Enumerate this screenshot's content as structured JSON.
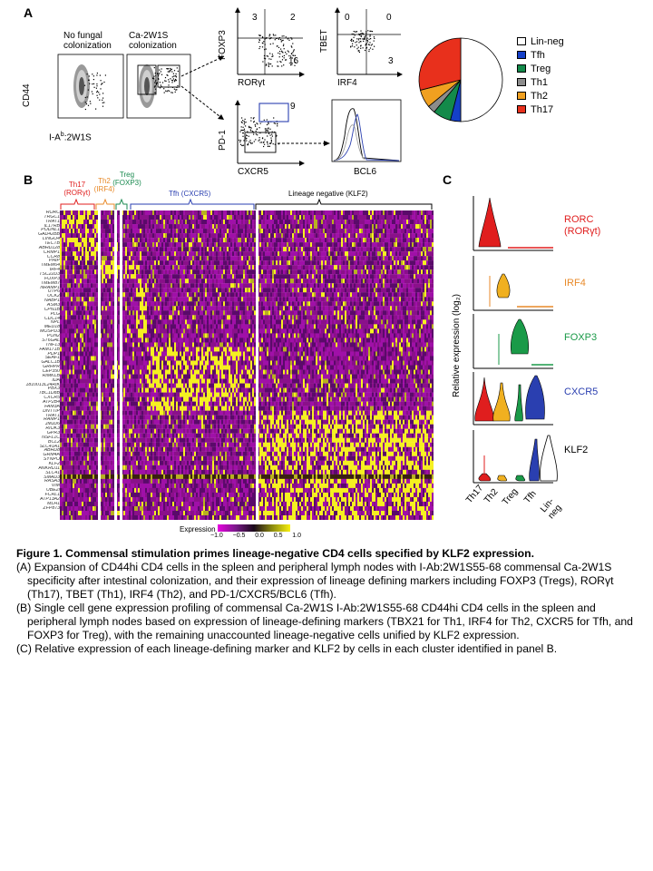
{
  "panelA": {
    "letter": "A",
    "col1_title": "No fungal colonization",
    "col2_title": "Ca-2W1S colonization",
    "y_axis": "CD44",
    "x_axis_prefix": "I-A",
    "x_axis_sup": "b",
    "x_axis_suffix": ":2W1S",
    "foxp3_plot": {
      "ylabel": "FOXP3",
      "xlabel": "RORγt",
      "q_ul": "3",
      "q_ur": "2",
      "q_lr": "16"
    },
    "tbet_plot": {
      "ylabel": "TBET",
      "xlabel": "IRF4",
      "q_ul": "0",
      "q_ur": "0",
      "q_lr": "3"
    },
    "pd1_plot": {
      "ylabel": "PD-1",
      "xlabel": "CXCR5",
      "gate": "9"
    },
    "bcl6_plot": {
      "xlabel": "BCL6"
    },
    "pie": {
      "legend": [
        {
          "label": "Lin-neg",
          "color": "#ffffff",
          "value": 0.5
        },
        {
          "label": "Tfh",
          "color": "#1440c8",
          "value": 0.04
        },
        {
          "label": "Treg",
          "color": "#138a4a",
          "value": 0.07
        },
        {
          "label": "Th1",
          "color": "#8c8c8c",
          "value": 0.03
        },
        {
          "label": "Th2",
          "color": "#f0a020",
          "value": 0.07
        },
        {
          "label": "Th17",
          "color": "#e8301c",
          "value": 0.29
        }
      ]
    }
  },
  "panelB": {
    "letter": "B",
    "groups": [
      {
        "line1": "Th17",
        "line2": "(RORγt)",
        "color": "#e01e1e"
      },
      {
        "line1": "Th2",
        "line2": "(IRF4)",
        "color": "#e88a2a"
      },
      {
        "line1": "Treg",
        "line2": "(FOXP3)",
        "color": "#1a8a50"
      },
      {
        "line1": "Tfh (CXCR5)",
        "line2": "",
        "color": "#2a3fb0"
      },
      {
        "line1": "Lineage negative (KLF2)",
        "line2": "",
        "color": "#000000"
      }
    ],
    "genes": [
      "RORC",
      "TRGC1",
      "TRAT1",
      "IL17RB",
      "PODNL1",
      "GAD42BB",
      "LINGO4",
      "TECTB",
      "ABHD128",
      "CRMP1",
      "CCR8",
      "PHIP",
      "TMEM64",
      "IRF4",
      "TSC22D3",
      "FOXP3",
      "TMEM87",
      "NRAMP1",
      "UTP6",
      "UCK2",
      "NABP1",
      "ASM3",
      "CPN1B",
      "PLG",
      "CDC14",
      "NPL",
      "MED18",
      "MOSPD3",
      "PON2",
      "ST6GAL",
      "TNF13",
      "FAM171B",
      "PDP1",
      "SEAF1",
      "GALC1B",
      "GRHPR",
      "CEP350",
      "RIMKLB",
      "IDA",
      "1810013L24RIK",
      "PBX3",
      "TBC1D8B",
      "CXCR5",
      "ATP2B4",
      "FAM3A",
      "DNTTIP",
      "TRAT1",
      "RAMP1",
      "JMJD6",
      "RIOK3",
      "GPR3",
      "NSFL1C",
      "BCL2",
      "SLC41A1",
      "ABHD8",
      "GRM4A",
      "SYNPO",
      "KLF2",
      "ANKRD11",
      "SLC41",
      "SMAD3",
      "RASA3",
      "VIM",
      "UBE2I",
      "FCRL1",
      "ATP13A2",
      "MLH1",
      "ZFP873"
    ],
    "cbar_title": "Expression",
    "cbar_ticks": [
      "−1.0",
      "−0.5",
      "0.0",
      "0.5",
      "1.0"
    ]
  },
  "panelC": {
    "letter": "C",
    "ylabel": "Relative expression (log₂)",
    "categories": [
      "Th17",
      "Th2",
      "Treg",
      "Tfh",
      "Lin-neg"
    ],
    "rows": [
      {
        "line1": "RORC",
        "line2": "(RORγt)",
        "color": "#e01e1e"
      },
      {
        "line1": "IRF4",
        "line2": "",
        "color": "#e88a2a"
      },
      {
        "line1": "FOXP3",
        "line2": "",
        "color": "#1a9a48"
      },
      {
        "line1": "CXCR5",
        "line2": "",
        "color": "#2a3fb0"
      },
      {
        "line1": "KLF2",
        "line2": "",
        "color": "#000000"
      }
    ]
  },
  "caption": {
    "title": "Figure 1. Commensal stimulation primes lineage-negative CD4 cells specified by KLF2 expression.",
    "A": "(A) Expansion of CD44hi CD4 cells in the spleen and peripheral lymph nodes with I-Ab:2W1S55-68 commensal Ca-2W1S specificity after intestinal colonization, and their expression of lineage defining markers including FOXP3 (Tregs), RORγt (Th17), TBET (Th1), IRF4 (Th2), and PD-1/CXCR5/BCL6 (Tfh).",
    "B": "(B) Single cell gene expression profiling of commensal Ca-2W1S I-Ab:2W1S55-68 CD44hi CD4 cells in the spleen and peripheral lymph nodes based on expression of lineage-defining markers (TBX21 for Th1, IRF4 for Th2, CXCR5 for Tfh, and FOXP3 for Treg), with the remaining unaccounted lineage-negative cells unified by KLF2 expression.",
    "C": "(C) Relative expression of each lineage-defining marker and KLF2 by cells in each cluster identified in panel B."
  }
}
